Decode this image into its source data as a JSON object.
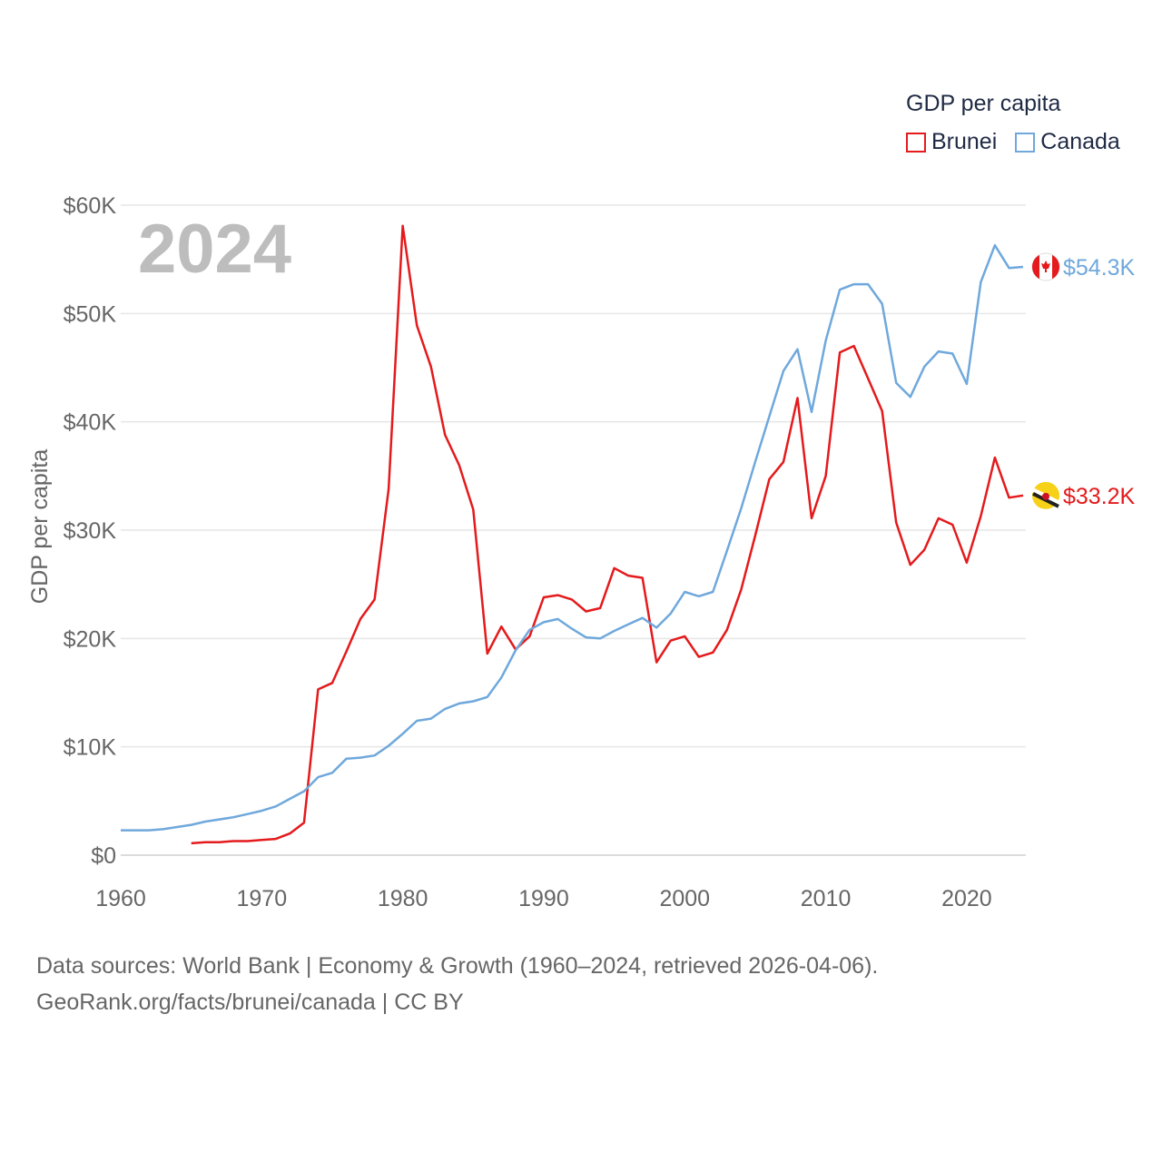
{
  "colors": {
    "brunei": "#e41a1c",
    "canada": "#6fa8dc",
    "grid": "#e6e6e6",
    "tick": "#666666",
    "year": "#bdbdbd"
  },
  "legend": {
    "title": "GDP per capita",
    "items": [
      {
        "label": "Brunei",
        "color": "#e41a1c"
      },
      {
        "label": "Canada",
        "color": "#6fa8dc"
      }
    ]
  },
  "source": {
    "line1": "Data sources: World Bank | Economy & Growth (1960–2024, retrieved 2026-04-06).",
    "line2": "GeoRank.org/facts/brunei/canada | CC BY"
  },
  "chart_data": {
    "type": "line",
    "title": "",
    "year_label": "2024",
    "xlabel": "",
    "ylabel": "GDP per capita",
    "xlim": [
      1960,
      2024
    ],
    "ylim": [
      0,
      60000
    ],
    "x_ticks": [
      1960,
      1970,
      1980,
      1990,
      2000,
      2010,
      2020
    ],
    "x_tick_labels": [
      "1960",
      "1970",
      "1980",
      "1990",
      "2000",
      "2010",
      "2020"
    ],
    "y_ticks": [
      0,
      10000,
      20000,
      30000,
      40000,
      50000,
      60000
    ],
    "y_tick_labels": [
      "$0",
      "$10K",
      "$20K",
      "$30K",
      "$40K",
      "$50K",
      "$60K"
    ],
    "series": [
      {
        "name": "Brunei",
        "color": "#e41a1c",
        "end_label": "$33.2K",
        "x": [
          1965,
          1966,
          1967,
          1968,
          1969,
          1970,
          1971,
          1972,
          1973,
          1974,
          1975,
          1976,
          1977,
          1978,
          1979,
          1980,
          1981,
          1982,
          1983,
          1984,
          1985,
          1986,
          1987,
          1988,
          1989,
          1990,
          1991,
          1992,
          1993,
          1994,
          1995,
          1996,
          1997,
          1998,
          1999,
          2000,
          2001,
          2002,
          2003,
          2004,
          2005,
          2006,
          2007,
          2008,
          2009,
          2010,
          2011,
          2012,
          2013,
          2014,
          2015,
          2016,
          2017,
          2018,
          2019,
          2020,
          2021,
          2022,
          2023,
          2024
        ],
        "values": [
          1100,
          1200,
          1200,
          1300,
          1300,
          1400,
          1500,
          2000,
          3000,
          15300,
          15900,
          18800,
          21800,
          23600,
          33800,
          58100,
          48900,
          45100,
          38800,
          36000,
          31900,
          18600,
          21100,
          19000,
          20200,
          23800,
          24000,
          23600,
          22500,
          22800,
          26500,
          25800,
          25600,
          17800,
          19800,
          20200,
          18300,
          18700,
          20800,
          24500,
          29500,
          34700,
          36300,
          42200,
          31100,
          35000,
          46400,
          47000,
          44000,
          41000,
          30700,
          26800,
          28200,
          31100,
          30500,
          27000,
          31300,
          36700,
          33000,
          33200
        ]
      },
      {
        "name": "Canada",
        "color": "#6fa8dc",
        "end_label": "$54.3K",
        "x": [
          1960,
          1961,
          1962,
          1963,
          1964,
          1965,
          1966,
          1967,
          1968,
          1969,
          1970,
          1971,
          1972,
          1973,
          1974,
          1975,
          1976,
          1977,
          1978,
          1979,
          1980,
          1981,
          1982,
          1983,
          1984,
          1985,
          1986,
          1987,
          1988,
          1989,
          1990,
          1991,
          1992,
          1993,
          1994,
          1995,
          1996,
          1997,
          1998,
          1999,
          2000,
          2001,
          2002,
          2003,
          2004,
          2005,
          2006,
          2007,
          2008,
          2009,
          2010,
          2011,
          2012,
          2013,
          2014,
          2015,
          2016,
          2017,
          2018,
          2019,
          2020,
          2021,
          2022,
          2023,
          2024
        ],
        "values": [
          2300,
          2300,
          2300,
          2400,
          2600,
          2800,
          3100,
          3300,
          3500,
          3800,
          4100,
          4500,
          5200,
          5900,
          7200,
          7600,
          8900,
          9000,
          9200,
          10100,
          11200,
          12400,
          12600,
          13500,
          14000,
          14200,
          14600,
          16400,
          18900,
          20800,
          21500,
          21800,
          20900,
          20100,
          20000,
          20700,
          21300,
          21900,
          21000,
          22300,
          24300,
          23900,
          24300,
          28100,
          32000,
          36300,
          40500,
          44700,
          46700,
          40900,
          47500,
          52200,
          52700,
          52700,
          50900,
          43600,
          42300,
          45100,
          46500,
          46300,
          43500,
          52900,
          56300,
          54200,
          54300
        ]
      }
    ]
  }
}
